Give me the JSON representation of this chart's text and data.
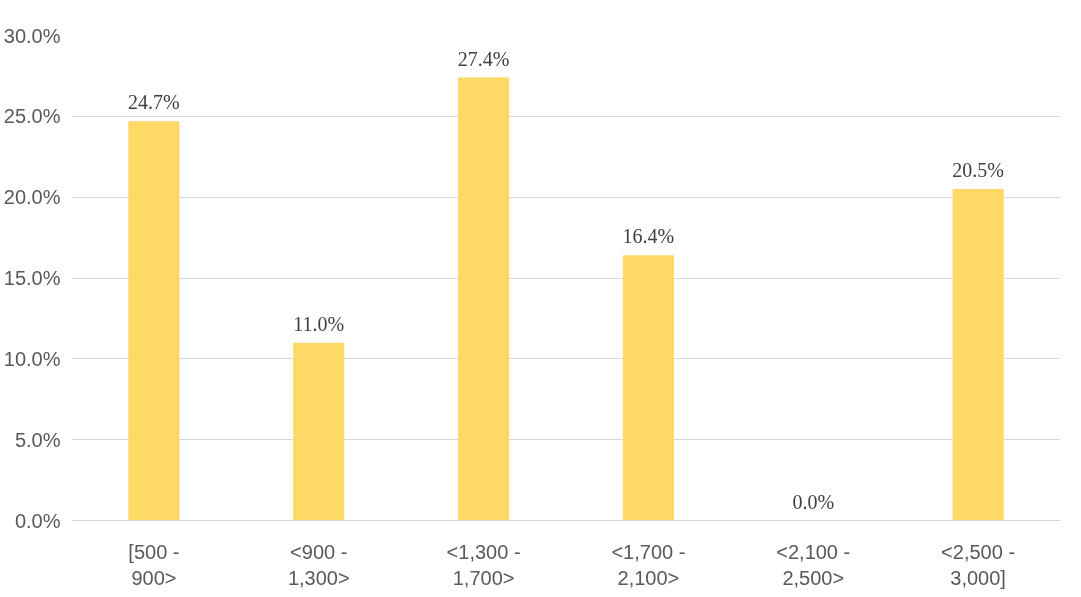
{
  "chart_data": {
    "type": "bar",
    "categories": [
      "[500 - 900>",
      "<900 - 1,300>",
      "<1,300 - 1,700>",
      "<1,700 - 2,100>",
      "<2,100 - 2,500>",
      "<2,500 - 3,000]"
    ],
    "values": [
      24.7,
      11.0,
      27.4,
      16.4,
      0.0,
      20.5
    ],
    "value_labels": [
      "24.7%",
      "11.0%",
      "27.4%",
      "16.4%",
      "0.0%",
      "20.5%"
    ],
    "color": "#ffd966",
    "ylim": [
      0,
      30
    ],
    "yticks": [
      {
        "value": 0,
        "label": "0.0%"
      },
      {
        "value": 5,
        "label": "5.0%"
      },
      {
        "value": 10,
        "label": "10.0%"
      },
      {
        "value": 15,
        "label": "15.0%"
      },
      {
        "value": 20,
        "label": "20.0%"
      },
      {
        "value": 25,
        "label": "25.0%"
      },
      {
        "value": 30,
        "label": "30.0%"
      }
    ],
    "grid": "y"
  }
}
